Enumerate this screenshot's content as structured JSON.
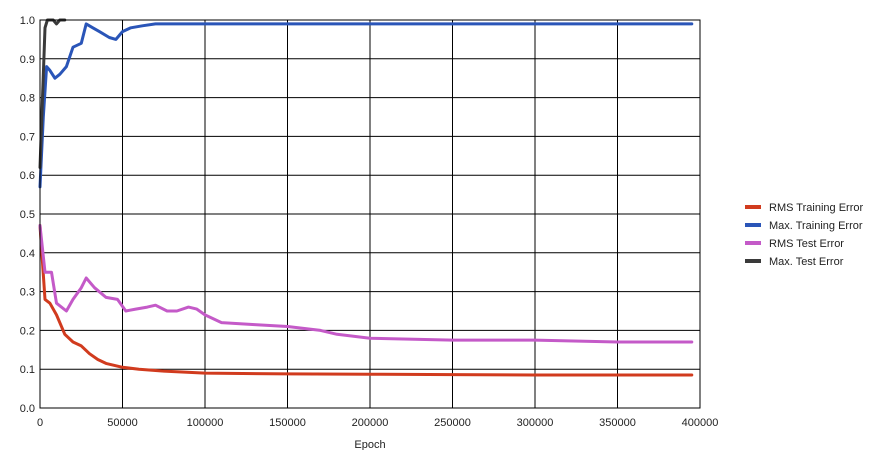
{
  "chart_data": {
    "type": "line",
    "title": "",
    "xlabel": "Epoch",
    "ylabel": "",
    "xlim": [
      0,
      400000
    ],
    "ylim": [
      0,
      1.0
    ],
    "x_ticks": [
      "0",
      "50000",
      "100000",
      "150000",
      "200000",
      "250000",
      "300000",
      "350000",
      "400000"
    ],
    "y_ticks": [
      "0.0",
      "0.1",
      "0.2",
      "0.3",
      "0.4",
      "0.5",
      "0.6",
      "0.7",
      "0.8",
      "0.9",
      "1.0"
    ],
    "grid": true,
    "legend_position": "right",
    "series": [
      {
        "name": "RMS Training Error",
        "color": "#d13b1e",
        "points": [
          [
            0,
            0.47
          ],
          [
            3000,
            0.28
          ],
          [
            6000,
            0.27
          ],
          [
            10000,
            0.24
          ],
          [
            15000,
            0.19
          ],
          [
            20000,
            0.17
          ],
          [
            25000,
            0.16
          ],
          [
            30000,
            0.14
          ],
          [
            35000,
            0.125
          ],
          [
            40000,
            0.115
          ],
          [
            50000,
            0.105
          ],
          [
            60000,
            0.1
          ],
          [
            75000,
            0.095
          ],
          [
            100000,
            0.09
          ],
          [
            150000,
            0.088
          ],
          [
            200000,
            0.087
          ],
          [
            250000,
            0.086
          ],
          [
            300000,
            0.085
          ],
          [
            350000,
            0.085
          ],
          [
            395000,
            0.085
          ]
        ]
      },
      {
        "name": "Max. Training Error",
        "color": "#2a55b8",
        "points": [
          [
            0,
            0.57
          ],
          [
            2000,
            0.75
          ],
          [
            4000,
            0.88
          ],
          [
            6000,
            0.87
          ],
          [
            9000,
            0.85
          ],
          [
            12000,
            0.86
          ],
          [
            16000,
            0.88
          ],
          [
            20000,
            0.93
          ],
          [
            25000,
            0.94
          ],
          [
            28000,
            0.99
          ],
          [
            32000,
            0.98
          ],
          [
            36000,
            0.97
          ],
          [
            42000,
            0.955
          ],
          [
            46000,
            0.95
          ],
          [
            50000,
            0.97
          ],
          [
            55000,
            0.98
          ],
          [
            62000,
            0.985
          ],
          [
            70000,
            0.99
          ],
          [
            80000,
            0.99
          ],
          [
            100000,
            0.99
          ],
          [
            150000,
            0.99
          ],
          [
            200000,
            0.99
          ],
          [
            250000,
            0.99
          ],
          [
            300000,
            0.99
          ],
          [
            350000,
            0.99
          ],
          [
            395000,
            0.99
          ]
        ]
      },
      {
        "name": "RMS Test Error",
        "color": "#c45ac8",
        "points": [
          [
            0,
            0.47
          ],
          [
            3000,
            0.35
          ],
          [
            7000,
            0.35
          ],
          [
            10000,
            0.27
          ],
          [
            16000,
            0.25
          ],
          [
            20000,
            0.28
          ],
          [
            25000,
            0.31
          ],
          [
            28000,
            0.335
          ],
          [
            33000,
            0.31
          ],
          [
            40000,
            0.285
          ],
          [
            47000,
            0.28
          ],
          [
            52000,
            0.25
          ],
          [
            58000,
            0.255
          ],
          [
            65000,
            0.26
          ],
          [
            70000,
            0.265
          ],
          [
            77000,
            0.25
          ],
          [
            83000,
            0.25
          ],
          [
            90000,
            0.26
          ],
          [
            95000,
            0.255
          ],
          [
            100000,
            0.24
          ],
          [
            110000,
            0.22
          ],
          [
            130000,
            0.215
          ],
          [
            150000,
            0.21
          ],
          [
            170000,
            0.2
          ],
          [
            180000,
            0.19
          ],
          [
            200000,
            0.18
          ],
          [
            250000,
            0.175
          ],
          [
            300000,
            0.175
          ],
          [
            350000,
            0.17
          ],
          [
            395000,
            0.17
          ]
        ]
      },
      {
        "name": "Max. Test Error",
        "color": "#3a3a3a",
        "points": [
          [
            0,
            0.62
          ],
          [
            1500,
            0.8
          ],
          [
            3000,
            0.98
          ],
          [
            4500,
            1.0
          ],
          [
            8000,
            1.0
          ],
          [
            10000,
            0.99
          ],
          [
            12000,
            1.0
          ],
          [
            15000,
            1.0
          ]
        ]
      }
    ]
  }
}
